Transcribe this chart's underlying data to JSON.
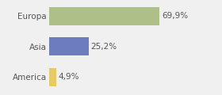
{
  "categories": [
    "Europa",
    "Asia",
    "America"
  ],
  "values": [
    69.9,
    25.2,
    4.9
  ],
  "bar_colors": [
    "#aec088",
    "#6b7dbf",
    "#e8c96a"
  ],
  "labels": [
    "69,9%",
    "25,2%",
    "4,9%"
  ],
  "xlim": [
    0,
    105
  ],
  "background_color": "#f0f0f0",
  "bar_height": 0.6,
  "label_fontsize": 7.5,
  "tick_fontsize": 7.5
}
